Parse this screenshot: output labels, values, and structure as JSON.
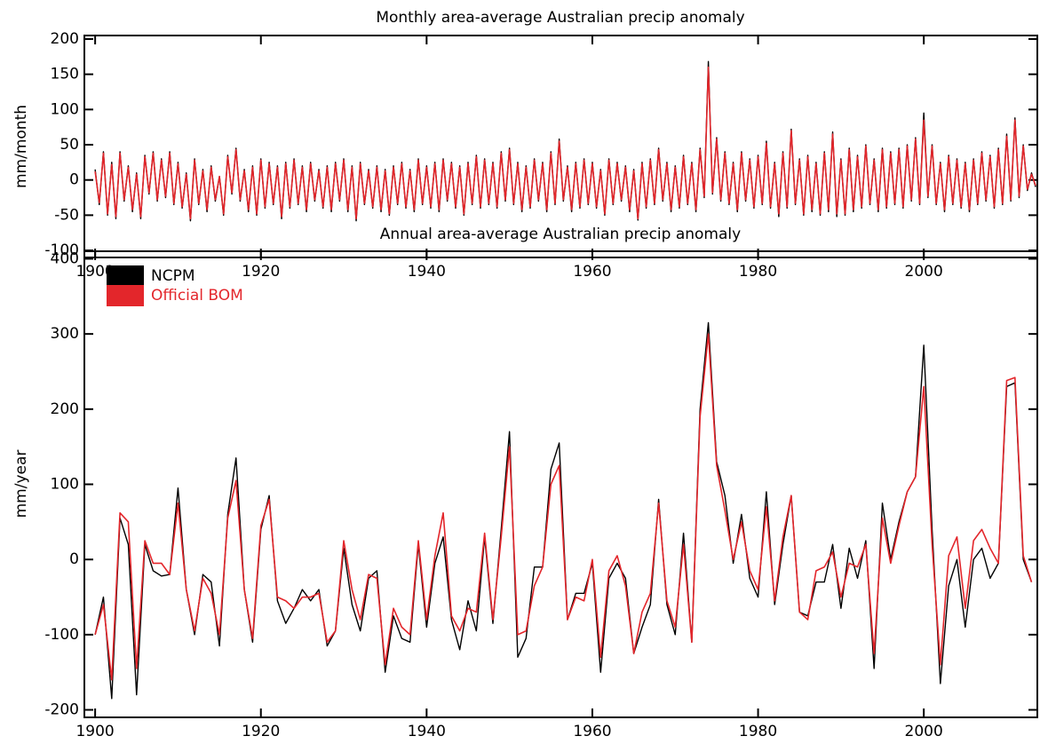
{
  "chart_data": [
    {
      "type": "line",
      "title": "Monthly area-average Australian precip anomaly",
      "y_label": "mm/month",
      "xlim": [
        1898.7,
        2013.7
      ],
      "ylim": [
        -110,
        205
      ],
      "xticks": [
        1900,
        1920,
        1940,
        1960,
        1980,
        2000
      ],
      "yticks": [
        -100,
        -50,
        0,
        50,
        100,
        150,
        200
      ],
      "x": [
        1900,
        1900.5,
        1901,
        1901.5,
        1902,
        1902.5,
        1903,
        1903.5,
        1904,
        1904.5,
        1905,
        1905.5,
        1906,
        1906.5,
        1907,
        1907.5,
        1908,
        1908.5,
        1909,
        1909.5,
        1910,
        1910.5,
        1911,
        1911.5,
        1912,
        1912.5,
        1913,
        1913.5,
        1914,
        1914.5,
        1915,
        1915.5,
        1916,
        1916.5,
        1917,
        1917.5,
        1918,
        1918.5,
        1919,
        1919.5,
        1920,
        1920.5,
        1921,
        1921.5,
        1922,
        1922.5,
        1923,
        1923.5,
        1924,
        1924.5,
        1925,
        1925.5,
        1926,
        1926.5,
        1927,
        1927.5,
        1928,
        1928.5,
        1929,
        1929.5,
        1930,
        1930.5,
        1931,
        1931.5,
        1932,
        1932.5,
        1933,
        1933.5,
        1934,
        1934.5,
        1935,
        1935.5,
        1936,
        1936.5,
        1937,
        1937.5,
        1938,
        1938.5,
        1939,
        1939.5,
        1940,
        1940.5,
        1941,
        1941.5,
        1942,
        1942.5,
        1943,
        1943.5,
        1944,
        1944.5,
        1945,
        1945.5,
        1946,
        1946.5,
        1947,
        1947.5,
        1948,
        1948.5,
        1949,
        1949.5,
        1950,
        1950.5,
        1951,
        1951.5,
        1952,
        1952.5,
        1953,
        1953.5,
        1954,
        1954.5,
        1955,
        1955.5,
        1956,
        1956.5,
        1957,
        1957.5,
        1958,
        1958.5,
        1959,
        1959.5,
        1960,
        1960.5,
        1961,
        1961.5,
        1962,
        1962.5,
        1963,
        1963.5,
        1964,
        1964.5,
        1965,
        1965.5,
        1966,
        1966.5,
        1967,
        1967.5,
        1968,
        1968.5,
        1969,
        1969.5,
        1970,
        1970.5,
        1971,
        1971.5,
        1972,
        1972.5,
        1973,
        1973.5,
        1974,
        1974.5,
        1975,
        1975.5,
        1976,
        1976.5,
        1977,
        1977.5,
        1978,
        1978.5,
        1979,
        1979.5,
        1980,
        1980.5,
        1981,
        1981.5,
        1982,
        1982.5,
        1983,
        1983.5,
        1984,
        1984.5,
        1985,
        1985.5,
        1986,
        1986.5,
        1987,
        1987.5,
        1988,
        1988.5,
        1989,
        1989.5,
        1990,
        1990.5,
        1991,
        1991.5,
        1992,
        1992.5,
        1993,
        1993.5,
        1994,
        1994.5,
        1995,
        1995.5,
        1996,
        1996.5,
        1997,
        1997.5,
        1998,
        1998.5,
        1999,
        1999.5,
        2000,
        2000.5,
        2001,
        2001.5,
        2002,
        2002.5,
        2003,
        2003.5,
        2004,
        2004.5,
        2005,
        2005.5,
        2006,
        2006.5,
        2007,
        2007.5,
        2008,
        2008.5,
        2009,
        2009.5,
        2010,
        2010.5,
        2011,
        2011.5,
        2012,
        2012.5,
        2013,
        2013.5
      ],
      "series": [
        {
          "color": "#000000",
          "values": [
            15,
            -35,
            40,
            -50,
            25,
            -55,
            40,
            -30,
            20,
            -45,
            10,
            -55,
            35,
            -20,
            40,
            -30,
            30,
            -25,
            40,
            -35,
            25,
            -40,
            10,
            -58,
            30,
            -35,
            15,
            -45,
            20,
            -30,
            5,
            -50,
            35,
            -20,
            45,
            -30,
            15,
            -45,
            20,
            -50,
            30,
            -40,
            25,
            -35,
            20,
            -55,
            25,
            -40,
            30,
            -35,
            20,
            -45,
            25,
            -30,
            15,
            -40,
            20,
            -45,
            25,
            -30,
            30,
            -45,
            20,
            -58,
            25,
            -35,
            15,
            -40,
            20,
            -45,
            15,
            -50,
            20,
            -35,
            25,
            -40,
            15,
            -45,
            30,
            -35,
            20,
            -40,
            25,
            -45,
            30,
            -30,
            25,
            -40,
            20,
            -50,
            25,
            -35,
            35,
            -40,
            30,
            -35,
            25,
            -40,
            40,
            -30,
            45,
            -35,
            25,
            -45,
            20,
            -40,
            30,
            -30,
            25,
            -45,
            40,
            -35,
            58,
            -30,
            20,
            -45,
            25,
            -40,
            30,
            -35,
            25,
            -40,
            15,
            -50,
            30,
            -35,
            25,
            -30,
            20,
            -45,
            15,
            -57,
            25,
            -40,
            30,
            -35,
            45,
            -30,
            25,
            -45,
            20,
            -40,
            35,
            -35,
            25,
            -45,
            45,
            -25,
            168,
            -20,
            60,
            -30,
            40,
            -35,
            25,
            -45,
            40,
            -30,
            30,
            -40,
            35,
            -35,
            55,
            -40,
            25,
            -52,
            40,
            -40,
            72,
            -35,
            30,
            -50,
            35,
            -45,
            25,
            -50,
            40,
            -45,
            68,
            -52,
            30,
            -50,
            45,
            -45,
            35,
            -40,
            50,
            -35,
            30,
            -45,
            45,
            -40,
            40,
            -35,
            45,
            -40,
            50,
            -30,
            60,
            -35,
            95,
            -25,
            50,
            -35,
            25,
            -45,
            35,
            -35,
            30,
            -40,
            25,
            -45,
            30,
            -35,
            40,
            -30,
            35,
            -40,
            45,
            -35,
            65,
            -30,
            88,
            -25,
            50,
            -15,
            10,
            -10
          ]
        },
        {
          "color": "#e3262b",
          "values": [
            12,
            -32,
            38,
            -48,
            22,
            -52,
            38,
            -28,
            18,
            -42,
            8,
            -52,
            33,
            -18,
            38,
            -28,
            28,
            -23,
            38,
            -33,
            23,
            -38,
            8,
            -55,
            28,
            -33,
            13,
            -42,
            18,
            -28,
            5,
            -48,
            33,
            -18,
            43,
            -28,
            13,
            -42,
            18,
            -48,
            28,
            -38,
            23,
            -33,
            18,
            -52,
            23,
            -38,
            28,
            -33,
            18,
            -42,
            23,
            -28,
            13,
            -38,
            18,
            -42,
            23,
            -28,
            28,
            -42,
            18,
            -55,
            23,
            -33,
            13,
            -38,
            18,
            -42,
            13,
            -48,
            18,
            -33,
            23,
            -38,
            13,
            -42,
            28,
            -33,
            18,
            -38,
            23,
            -42,
            28,
            -28,
            23,
            -38,
            18,
            -48,
            23,
            -33,
            33,
            -38,
            28,
            -33,
            23,
            -38,
            38,
            -28,
            43,
            -33,
            23,
            -42,
            18,
            -38,
            28,
            -28,
            23,
            -42,
            38,
            -33,
            55,
            -28,
            18,
            -42,
            23,
            -38,
            28,
            -33,
            23,
            -38,
            13,
            -48,
            28,
            -33,
            23,
            -28,
            18,
            -42,
            13,
            -55,
            23,
            -38,
            28,
            -33,
            43,
            -28,
            23,
            -42,
            18,
            -38,
            33,
            -33,
            23,
            -42,
            43,
            -23,
            160,
            -18,
            58,
            -28,
            38,
            -33,
            23,
            -42,
            38,
            -28,
            28,
            -38,
            33,
            -33,
            52,
            -38,
            23,
            -48,
            38,
            -38,
            70,
            -33,
            28,
            -48,
            33,
            -42,
            23,
            -48,
            38,
            -42,
            65,
            -48,
            28,
            -48,
            43,
            -42,
            33,
            -38,
            48,
            -33,
            28,
            -42,
            43,
            -38,
            38,
            -33,
            43,
            -38,
            48,
            -28,
            58,
            -33,
            85,
            -23,
            48,
            -33,
            23,
            -42,
            33,
            -33,
            28,
            -38,
            23,
            -42,
            28,
            -33,
            38,
            -28,
            33,
            -38,
            43,
            -33,
            62,
            -28,
            85,
            -23,
            48,
            -13,
            8,
            -8
          ]
        }
      ]
    },
    {
      "type": "line",
      "title": "Annual area-average Australian precip anomaly",
      "y_label": "mm/year",
      "xlim": [
        1898.7,
        2013.7
      ],
      "ylim": [
        -210,
        410
      ],
      "xticks": [
        1900,
        1920,
        1940,
        1960,
        1980,
        2000
      ],
      "yticks": [
        -200,
        -100,
        0,
        100,
        200,
        300,
        400
      ],
      "legend": "upper left",
      "x": [
        1900,
        1901,
        1902,
        1903,
        1904,
        1905,
        1906,
        1907,
        1908,
        1909,
        1910,
        1911,
        1912,
        1913,
        1914,
        1915,
        1916,
        1917,
        1918,
        1919,
        1920,
        1921,
        1922,
        1923,
        1924,
        1925,
        1926,
        1927,
        1928,
        1929,
        1930,
        1931,
        1932,
        1933,
        1934,
        1935,
        1936,
        1937,
        1938,
        1939,
        1940,
        1941,
        1942,
        1943,
        1944,
        1945,
        1946,
        1947,
        1948,
        1949,
        1950,
        1951,
        1952,
        1953,
        1954,
        1955,
        1956,
        1957,
        1958,
        1959,
        1960,
        1961,
        1962,
        1963,
        1964,
        1965,
        1966,
        1967,
        1968,
        1969,
        1970,
        1971,
        1972,
        1973,
        1974,
        1975,
        1976,
        1977,
        1978,
        1979,
        1980,
        1981,
        1982,
        1983,
        1984,
        1985,
        1986,
        1987,
        1988,
        1989,
        1990,
        1991,
        1992,
        1993,
        1994,
        1995,
        1996,
        1997,
        1998,
        1999,
        2000,
        2001,
        2002,
        2003,
        2004,
        2005,
        2006,
        2007,
        2008,
        2009,
        2010,
        2011,
        2012,
        2013
      ],
      "series": [
        {
          "name": "NCPM",
          "color": "#000000",
          "values": [
            -100,
            -50,
            -185,
            55,
            20,
            -180,
            20,
            -15,
            -22,
            -20,
            95,
            -40,
            -100,
            -20,
            -30,
            -115,
            60,
            135,
            -40,
            -110,
            40,
            85,
            -55,
            -85,
            -65,
            -40,
            -55,
            -40,
            -115,
            -95,
            15,
            -60,
            -95,
            -25,
            -15,
            -150,
            -75,
            -105,
            -110,
            20,
            -90,
            -5,
            30,
            -80,
            -120,
            -55,
            -95,
            30,
            -85,
            40,
            170,
            -130,
            -105,
            -10,
            -10,
            120,
            155,
            -80,
            -45,
            -45,
            -5,
            -150,
            -25,
            -5,
            -25,
            -125,
            -90,
            -60,
            80,
            -60,
            -100,
            35,
            -110,
            200,
            315,
            130,
            85,
            -5,
            60,
            -25,
            -50,
            90,
            -60,
            20,
            85,
            -70,
            -75,
            -30,
            -30,
            20,
            -65,
            15,
            -25,
            25,
            -145,
            75,
            0,
            50,
            90,
            110,
            285,
            40,
            -165,
            -35,
            0,
            -90,
            0,
            15,
            -25,
            -5,
            230,
            235,
            0,
            -30
          ]
        },
        {
          "name": "Official BOM",
          "color": "#e3262b",
          "values": [
            -100,
            -60,
            -160,
            62,
            50,
            -145,
            25,
            -5,
            -5,
            -20,
            75,
            -40,
            -95,
            -25,
            -45,
            -100,
            55,
            105,
            -40,
            -105,
            45,
            80,
            -50,
            -55,
            -65,
            -50,
            -50,
            -45,
            -110,
            -95,
            25,
            -40,
            -80,
            -20,
            -25,
            -140,
            -65,
            -90,
            -100,
            25,
            -80,
            5,
            62,
            -75,
            -95,
            -65,
            -70,
            35,
            -80,
            30,
            150,
            -100,
            -95,
            -35,
            -10,
            100,
            125,
            -80,
            -50,
            -55,
            0,
            -130,
            -15,
            5,
            -35,
            -125,
            -70,
            -45,
            75,
            -55,
            -90,
            20,
            -110,
            190,
            300,
            125,
            65,
            0,
            50,
            -15,
            -40,
            70,
            -55,
            30,
            85,
            -70,
            -80,
            -15,
            -10,
            10,
            -50,
            -5,
            -10,
            20,
            -125,
            55,
            -5,
            45,
            90,
            110,
            230,
            20,
            -140,
            5,
            30,
            -65,
            25,
            40,
            15,
            -5,
            238,
            242,
            5,
            -30
          ]
        }
      ]
    }
  ]
}
